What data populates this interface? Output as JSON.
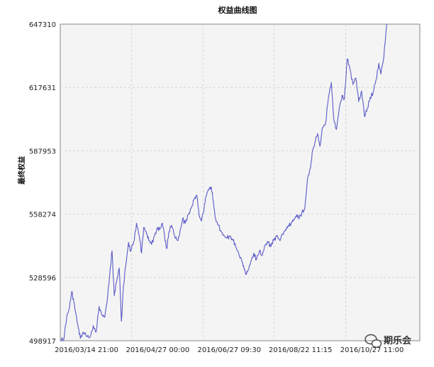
{
  "chart_data": {
    "type": "line",
    "title": "权益曲线图",
    "ylabel": "最终权益",
    "xlabel": "",
    "y_ticks": [
      "498917",
      "528596",
      "558274",
      "587953",
      "617631",
      "647310"
    ],
    "y_tick_values": [
      498917,
      528596,
      558274,
      587953,
      617631,
      647310
    ],
    "ylim": [
      498917,
      647310
    ],
    "x_ticks": [
      "2016/03/14 21:00",
      "2016/04/27 00:00",
      "2016/06/27 09:30",
      "2016/08/22 11:15",
      "2016/10/27 11:00"
    ],
    "x_tick_positions": [
      0.0,
      0.198,
      0.397,
      0.595,
      0.794
    ],
    "grid": true,
    "series": [
      {
        "color": "#5a5ac8",
        "points": [
          [
            0.0,
            498917
          ],
          [
            0.01,
            499500
          ],
          [
            0.018,
            510000
          ],
          [
            0.026,
            515000
          ],
          [
            0.032,
            522000
          ],
          [
            0.038,
            517000
          ],
          [
            0.044,
            511000
          ],
          [
            0.05,
            505000
          ],
          [
            0.056,
            500000
          ],
          [
            0.064,
            503000
          ],
          [
            0.072,
            501000
          ],
          [
            0.082,
            500500
          ],
          [
            0.092,
            506000
          ],
          [
            0.1,
            503000
          ],
          [
            0.108,
            515000
          ],
          [
            0.116,
            511000
          ],
          [
            0.124,
            510000
          ],
          [
            0.132,
            520000
          ],
          [
            0.138,
            531000
          ],
          [
            0.144,
            541000
          ],
          [
            0.15,
            520000
          ],
          [
            0.156,
            526000
          ],
          [
            0.164,
            533000
          ],
          [
            0.17,
            508000
          ],
          [
            0.176,
            525000
          ],
          [
            0.182,
            534000
          ],
          [
            0.19,
            545000
          ],
          [
            0.196,
            541000
          ],
          [
            0.204,
            545000
          ],
          [
            0.212,
            554000
          ],
          [
            0.22,
            548000
          ],
          [
            0.226,
            540000
          ],
          [
            0.232,
            552000
          ],
          [
            0.24,
            549000
          ],
          [
            0.246,
            546000
          ],
          [
            0.254,
            544000
          ],
          [
            0.262,
            548000
          ],
          [
            0.27,
            552000
          ],
          [
            0.276,
            551000
          ],
          [
            0.284,
            554000
          ],
          [
            0.29,
            548000
          ],
          [
            0.296,
            542000
          ],
          [
            0.302,
            550000
          ],
          [
            0.31,
            553000
          ],
          [
            0.318,
            548000
          ],
          [
            0.326,
            546000
          ],
          [
            0.332,
            549000
          ],
          [
            0.34,
            556000
          ],
          [
            0.348,
            554000
          ],
          [
            0.356,
            558000
          ],
          [
            0.364,
            561000
          ],
          [
            0.372,
            565000
          ],
          [
            0.38,
            567000
          ],
          [
            0.386,
            558000
          ],
          [
            0.392,
            555000
          ],
          [
            0.398,
            559000
          ],
          [
            0.404,
            566000
          ],
          [
            0.412,
            570000
          ],
          [
            0.42,
            571000
          ],
          [
            0.426,
            564000
          ],
          [
            0.432,
            556000
          ],
          [
            0.44,
            553000
          ],
          [
            0.448,
            550000
          ],
          [
            0.456,
            548000
          ],
          [
            0.464,
            547000
          ],
          [
            0.472,
            548000
          ],
          [
            0.48,
            546000
          ],
          [
            0.488,
            543000
          ],
          [
            0.496,
            540000
          ],
          [
            0.504,
            537000
          ],
          [
            0.51,
            534000
          ],
          [
            0.516,
            530000
          ],
          [
            0.522,
            532000
          ],
          [
            0.53,
            536000
          ],
          [
            0.538,
            540000
          ],
          [
            0.546,
            537000
          ],
          [
            0.554,
            541000
          ],
          [
            0.562,
            539000
          ],
          [
            0.57,
            544000
          ],
          [
            0.578,
            545000
          ],
          [
            0.586,
            543000
          ],
          [
            0.594,
            546000
          ],
          [
            0.602,
            548000
          ],
          [
            0.61,
            546000
          ],
          [
            0.618,
            549000
          ],
          [
            0.626,
            551000
          ],
          [
            0.634,
            553000
          ],
          [
            0.642,
            554000
          ],
          [
            0.65,
            556000
          ],
          [
            0.658,
            558000
          ],
          [
            0.664,
            556000
          ],
          [
            0.672,
            559000
          ],
          [
            0.68,
            561000
          ],
          [
            0.688,
            575000
          ],
          [
            0.696,
            580000
          ],
          [
            0.702,
            588000
          ],
          [
            0.71,
            593000
          ],
          [
            0.716,
            596000
          ],
          [
            0.722,
            590000
          ],
          [
            0.73,
            599000
          ],
          [
            0.738,
            601000
          ],
          [
            0.746,
            613000
          ],
          [
            0.754,
            620000
          ],
          [
            0.76,
            604000
          ],
          [
            0.768,
            598000
          ],
          [
            0.776,
            608000
          ],
          [
            0.784,
            614000
          ],
          [
            0.79,
            612000
          ],
          [
            0.798,
            631000
          ],
          [
            0.806,
            626000
          ],
          [
            0.814,
            619000
          ],
          [
            0.822,
            622000
          ],
          [
            0.83,
            611000
          ],
          [
            0.838,
            616000
          ],
          [
            0.846,
            604000
          ],
          [
            0.854,
            608000
          ],
          [
            0.862,
            613000
          ],
          [
            0.87,
            615000
          ],
          [
            0.878,
            621000
          ],
          [
            0.886,
            629000
          ],
          [
            0.892,
            624000
          ],
          [
            0.9,
            632000
          ],
          [
            0.908,
            647310
          ]
        ]
      }
    ]
  },
  "watermark": {
    "icon": "wechat-icon",
    "text": "期乐会"
  }
}
